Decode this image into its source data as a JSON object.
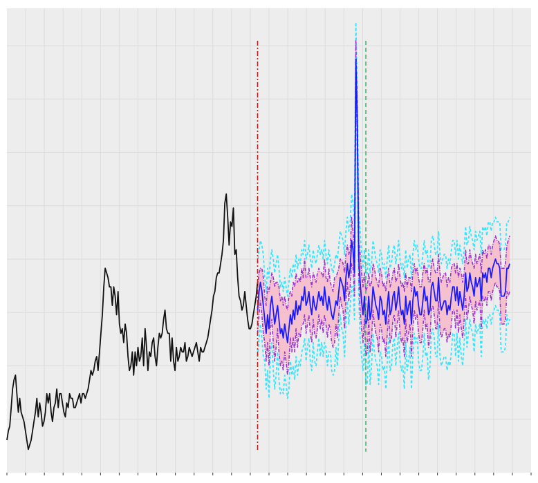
{
  "chart_data": {
    "type": "line",
    "title": "",
    "xlabel": "",
    "ylabel": "",
    "grid": true,
    "xlim": [
      0,
      368
    ],
    "ylim": [
      0,
      100
    ],
    "colors": {
      "background": "#ededed",
      "grid": "#dcdcdc",
      "history": "#111111",
      "mean_forecast": "#1a1aff",
      "quantile_lines": "#9933cc",
      "outer_bounds": "#33e6ff",
      "band_fill": "#f7b8c8",
      "forecast_start_line": "#b22222",
      "event_line": "#3cb371"
    },
    "vlines": [
      {
        "name": "forecast-start",
        "x": 176,
        "style": "dashdot"
      },
      {
        "name": "event",
        "x": 252,
        "style": "dashed"
      }
    ],
    "history": {
      "x_start": 0,
      "values": [
        7,
        9,
        10,
        14,
        18,
        20,
        21,
        17,
        13,
        16,
        13,
        12,
        11,
        9,
        7,
        5,
        6,
        7,
        9,
        11,
        13,
        16,
        12,
        15,
        13,
        10,
        11,
        13,
        17,
        15,
        17,
        13,
        11,
        14,
        15,
        18,
        14,
        17,
        17,
        15,
        13,
        12,
        15,
        14,
        17,
        16,
        16,
        14,
        14,
        15,
        16,
        17,
        15,
        17,
        17,
        16,
        17,
        18,
        20,
        22,
        21,
        22,
        24,
        25,
        22,
        26,
        30,
        34,
        40,
        44,
        43,
        42,
        40,
        40,
        36,
        40,
        38,
        34,
        39,
        32,
        30,
        31,
        28,
        32,
        30,
        25,
        22,
        23,
        26,
        21,
        26,
        23,
        27,
        24,
        25,
        29,
        23,
        31,
        27,
        22,
        26,
        25,
        28,
        29,
        25,
        23,
        27,
        30,
        29,
        30,
        33,
        35,
        31,
        30,
        30,
        24,
        29,
        24,
        22,
        27,
        24,
        25,
        27,
        26,
        26,
        28,
        24,
        25,
        27,
        26,
        25,
        26,
        27,
        28,
        26,
        24,
        27,
        26,
        26,
        27,
        28,
        29,
        31,
        33,
        35,
        38,
        39,
        42,
        43,
        43,
        45,
        47,
        50,
        58,
        60,
        55,
        49,
        54,
        53,
        57,
        47,
        48,
        42,
        38,
        37,
        35,
        36,
        39,
        36,
        33,
        31,
        31,
        32,
        34,
        36,
        38,
        41
      ]
    },
    "forecast": {
      "x_start": 176,
      "series": [
        {
          "name": "upper-outer",
          "values": [
            45,
            48,
            50,
            49,
            47,
            42,
            39,
            44,
            42,
            46,
            48,
            46,
            43,
            45,
            47,
            44,
            40,
            41,
            39,
            42,
            40,
            38,
            41,
            44,
            42,
            45,
            43,
            47,
            44,
            46,
            45,
            48,
            47,
            50,
            46,
            47,
            49,
            46,
            44,
            48,
            46,
            45,
            47,
            49,
            47,
            48,
            46,
            50,
            47,
            45,
            48,
            46,
            44,
            43,
            45,
            47,
            46,
            49,
            52,
            51,
            50,
            47,
            52,
            55,
            52,
            54,
            60,
            58,
            53,
            97,
            83,
            56,
            52,
            47,
            44,
            48,
            42,
            43,
            48,
            43,
            45,
            50,
            48,
            46,
            45,
            43,
            48,
            47,
            44,
            45,
            42,
            46,
            49,
            44,
            45,
            48,
            49,
            45,
            47,
            50,
            46,
            44,
            45,
            42,
            48,
            44,
            46,
            47,
            42,
            47,
            50,
            48,
            49,
            46,
            44,
            44,
            47,
            50,
            47,
            48,
            44,
            45,
            50,
            51,
            49,
            47,
            47,
            52,
            47,
            45,
            46,
            47,
            47,
            44,
            46,
            45,
            48,
            50,
            50,
            47,
            50,
            46,
            49,
            47,
            45,
            48,
            53,
            49,
            50,
            53,
            51,
            50,
            48,
            52,
            50,
            51,
            52,
            47,
            53,
            52,
            53,
            51,
            54,
            54,
            52,
            54,
            54,
            55,
            54,
            54,
            54,
            48,
            48,
            48,
            49,
            54,
            54,
            55
          ]
        },
        {
          "name": "upper-q",
          "values": [
            40,
            43,
            44,
            44,
            42,
            38,
            36,
            40,
            39,
            41,
            43,
            42,
            40,
            41,
            41,
            40,
            37,
            38,
            36,
            38,
            36,
            35,
            38,
            39,
            38,
            41,
            40,
            43,
            41,
            42,
            41,
            44,
            42,
            46,
            42,
            42,
            44,
            42,
            40,
            43,
            42,
            41,
            43,
            44,
            43,
            43,
            42,
            46,
            42,
            41,
            44,
            41,
            40,
            39,
            42,
            42,
            43,
            44,
            46,
            46,
            45,
            43,
            47,
            49,
            47,
            48,
            55,
            52,
            48,
            93,
            78,
            50,
            47,
            43,
            40,
            43,
            39,
            40,
            43,
            40,
            41,
            45,
            44,
            42,
            41,
            40,
            44,
            43,
            40,
            41,
            39,
            42,
            44,
            40,
            41,
            43,
            44,
            41,
            42,
            45,
            42,
            40,
            41,
            39,
            43,
            40,
            42,
            42,
            39,
            43,
            45,
            43,
            44,
            42,
            40,
            40,
            43,
            45,
            43,
            44,
            41,
            41,
            45,
            46,
            44,
            43,
            43,
            47,
            43,
            41,
            42,
            43,
            43,
            40,
            42,
            41,
            44,
            45,
            45,
            43,
            45,
            42,
            44,
            43,
            41,
            43,
            48,
            45,
            45,
            48,
            46,
            45,
            44,
            47,
            45,
            46,
            47,
            43,
            48,
            47,
            48,
            46,
            49,
            49,
            47,
            49,
            50,
            51,
            50,
            50,
            49,
            44,
            44,
            44,
            45,
            49,
            50,
            51
          ]
        },
        {
          "name": "mean",
          "values": [
            35,
            39,
            41,
            39,
            36,
            33,
            30,
            34,
            31,
            36,
            38,
            35,
            32,
            34,
            36,
            33,
            30,
            31,
            29,
            32,
            30,
            28,
            31,
            34,
            32,
            35,
            33,
            37,
            34,
            36,
            35,
            38,
            37,
            40,
            36,
            37,
            39,
            36,
            34,
            38,
            36,
            35,
            37,
            39,
            37,
            38,
            36,
            40,
            37,
            35,
            38,
            36,
            34,
            33,
            35,
            37,
            36,
            39,
            42,
            41,
            40,
            37,
            42,
            45,
            42,
            44,
            50,
            48,
            43,
            89,
            75,
            46,
            41,
            37,
            34,
            38,
            32,
            33,
            38,
            33,
            35,
            40,
            38,
            36,
            35,
            33,
            38,
            37,
            34,
            35,
            32,
            36,
            39,
            34,
            35,
            38,
            39,
            35,
            37,
            40,
            36,
            34,
            35,
            32,
            38,
            34,
            36,
            37,
            32,
            37,
            40,
            38,
            39,
            36,
            34,
            34,
            37,
            40,
            37,
            38,
            34,
            35,
            40,
            41,
            39,
            37,
            37,
            42,
            37,
            35,
            36,
            37,
            37,
            34,
            36,
            35,
            38,
            40,
            40,
            37,
            40,
            36,
            39,
            37,
            35,
            38,
            43,
            39,
            40,
            43,
            41,
            40,
            38,
            42,
            40,
            41,
            42,
            37,
            43,
            42,
            43,
            41,
            44,
            44,
            42,
            44,
            45,
            46,
            45,
            45,
            44,
            38,
            38,
            38,
            39,
            44,
            44,
            45
          ]
        },
        {
          "name": "lower-q",
          "values": [
            30,
            34,
            37,
            34,
            30,
            28,
            24,
            28,
            23,
            31,
            33,
            28,
            24,
            27,
            31,
            26,
            23,
            24,
            22,
            26,
            24,
            21,
            24,
            29,
            26,
            29,
            26,
            31,
            27,
            30,
            29,
            32,
            32,
            34,
            30,
            32,
            34,
            30,
            28,
            33,
            30,
            29,
            31,
            34,
            31,
            33,
            30,
            34,
            32,
            29,
            32,
            31,
            28,
            27,
            28,
            32,
            29,
            34,
            38,
            36,
            35,
            31,
            37,
            41,
            37,
            40,
            45,
            44,
            38,
            85,
            72,
            42,
            35,
            31,
            28,
            33,
            25,
            26,
            33,
            26,
            29,
            35,
            32,
            30,
            29,
            26,
            32,
            31,
            28,
            29,
            25,
            30,
            34,
            28,
            29,
            33,
            34,
            29,
            32,
            35,
            30,
            28,
            29,
            25,
            33,
            28,
            30,
            32,
            25,
            31,
            35,
            33,
            34,
            30,
            28,
            28,
            31,
            35,
            31,
            32,
            27,
            29,
            35,
            36,
            34,
            31,
            31,
            37,
            31,
            29,
            30,
            31,
            31,
            28,
            30,
            29,
            32,
            35,
            35,
            31,
            35,
            30,
            34,
            31,
            29,
            33,
            38,
            33,
            35,
            38,
            36,
            35,
            32,
            37,
            35,
            36,
            37,
            31,
            38,
            37,
            38,
            36,
            39,
            39,
            37,
            39,
            40,
            41,
            40,
            40,
            39,
            32,
            32,
            32,
            33,
            39,
            38,
            39
          ]
        },
        {
          "name": "lower-outer",
          "values": [
            25,
            29,
            32,
            29,
            25,
            24,
            18,
            22,
            16,
            26,
            28,
            22,
            18,
            21,
            26,
            20,
            17,
            18,
            17,
            21,
            19,
            16,
            18,
            24,
            21,
            23,
            20,
            25,
            21,
            24,
            23,
            26,
            27,
            29,
            24,
            27,
            29,
            24,
            22,
            28,
            24,
            23,
            26,
            29,
            25,
            28,
            25,
            28,
            27,
            23,
            26,
            26,
            22,
            21,
            22,
            27,
            23,
            29,
            34,
            31,
            30,
            25,
            32,
            37,
            32,
            36,
            40,
            40,
            33,
            80,
            68,
            38,
            29,
            25,
            22,
            28,
            19,
            19,
            28,
            19,
            23,
            30,
            26,
            24,
            23,
            19,
            26,
            25,
            22,
            23,
            18,
            24,
            29,
            22,
            23,
            28,
            29,
            23,
            27,
            30,
            24,
            22,
            23,
            18,
            28,
            22,
            24,
            27,
            18,
            25,
            30,
            28,
            29,
            24,
            22,
            22,
            25,
            30,
            25,
            26,
            20,
            23,
            30,
            31,
            29,
            25,
            25,
            32,
            25,
            23,
            24,
            25,
            25,
            22,
            24,
            23,
            26,
            30,
            30,
            25,
            30,
            24,
            29,
            25,
            23,
            28,
            33,
            27,
            30,
            33,
            31,
            30,
            26,
            32,
            30,
            31,
            32,
            25,
            33,
            32,
            33,
            31,
            34,
            34,
            32,
            34,
            35,
            36,
            35,
            35,
            34,
            26,
            26,
            26,
            27,
            34,
            32,
            33
          ]
        }
      ]
    }
  }
}
